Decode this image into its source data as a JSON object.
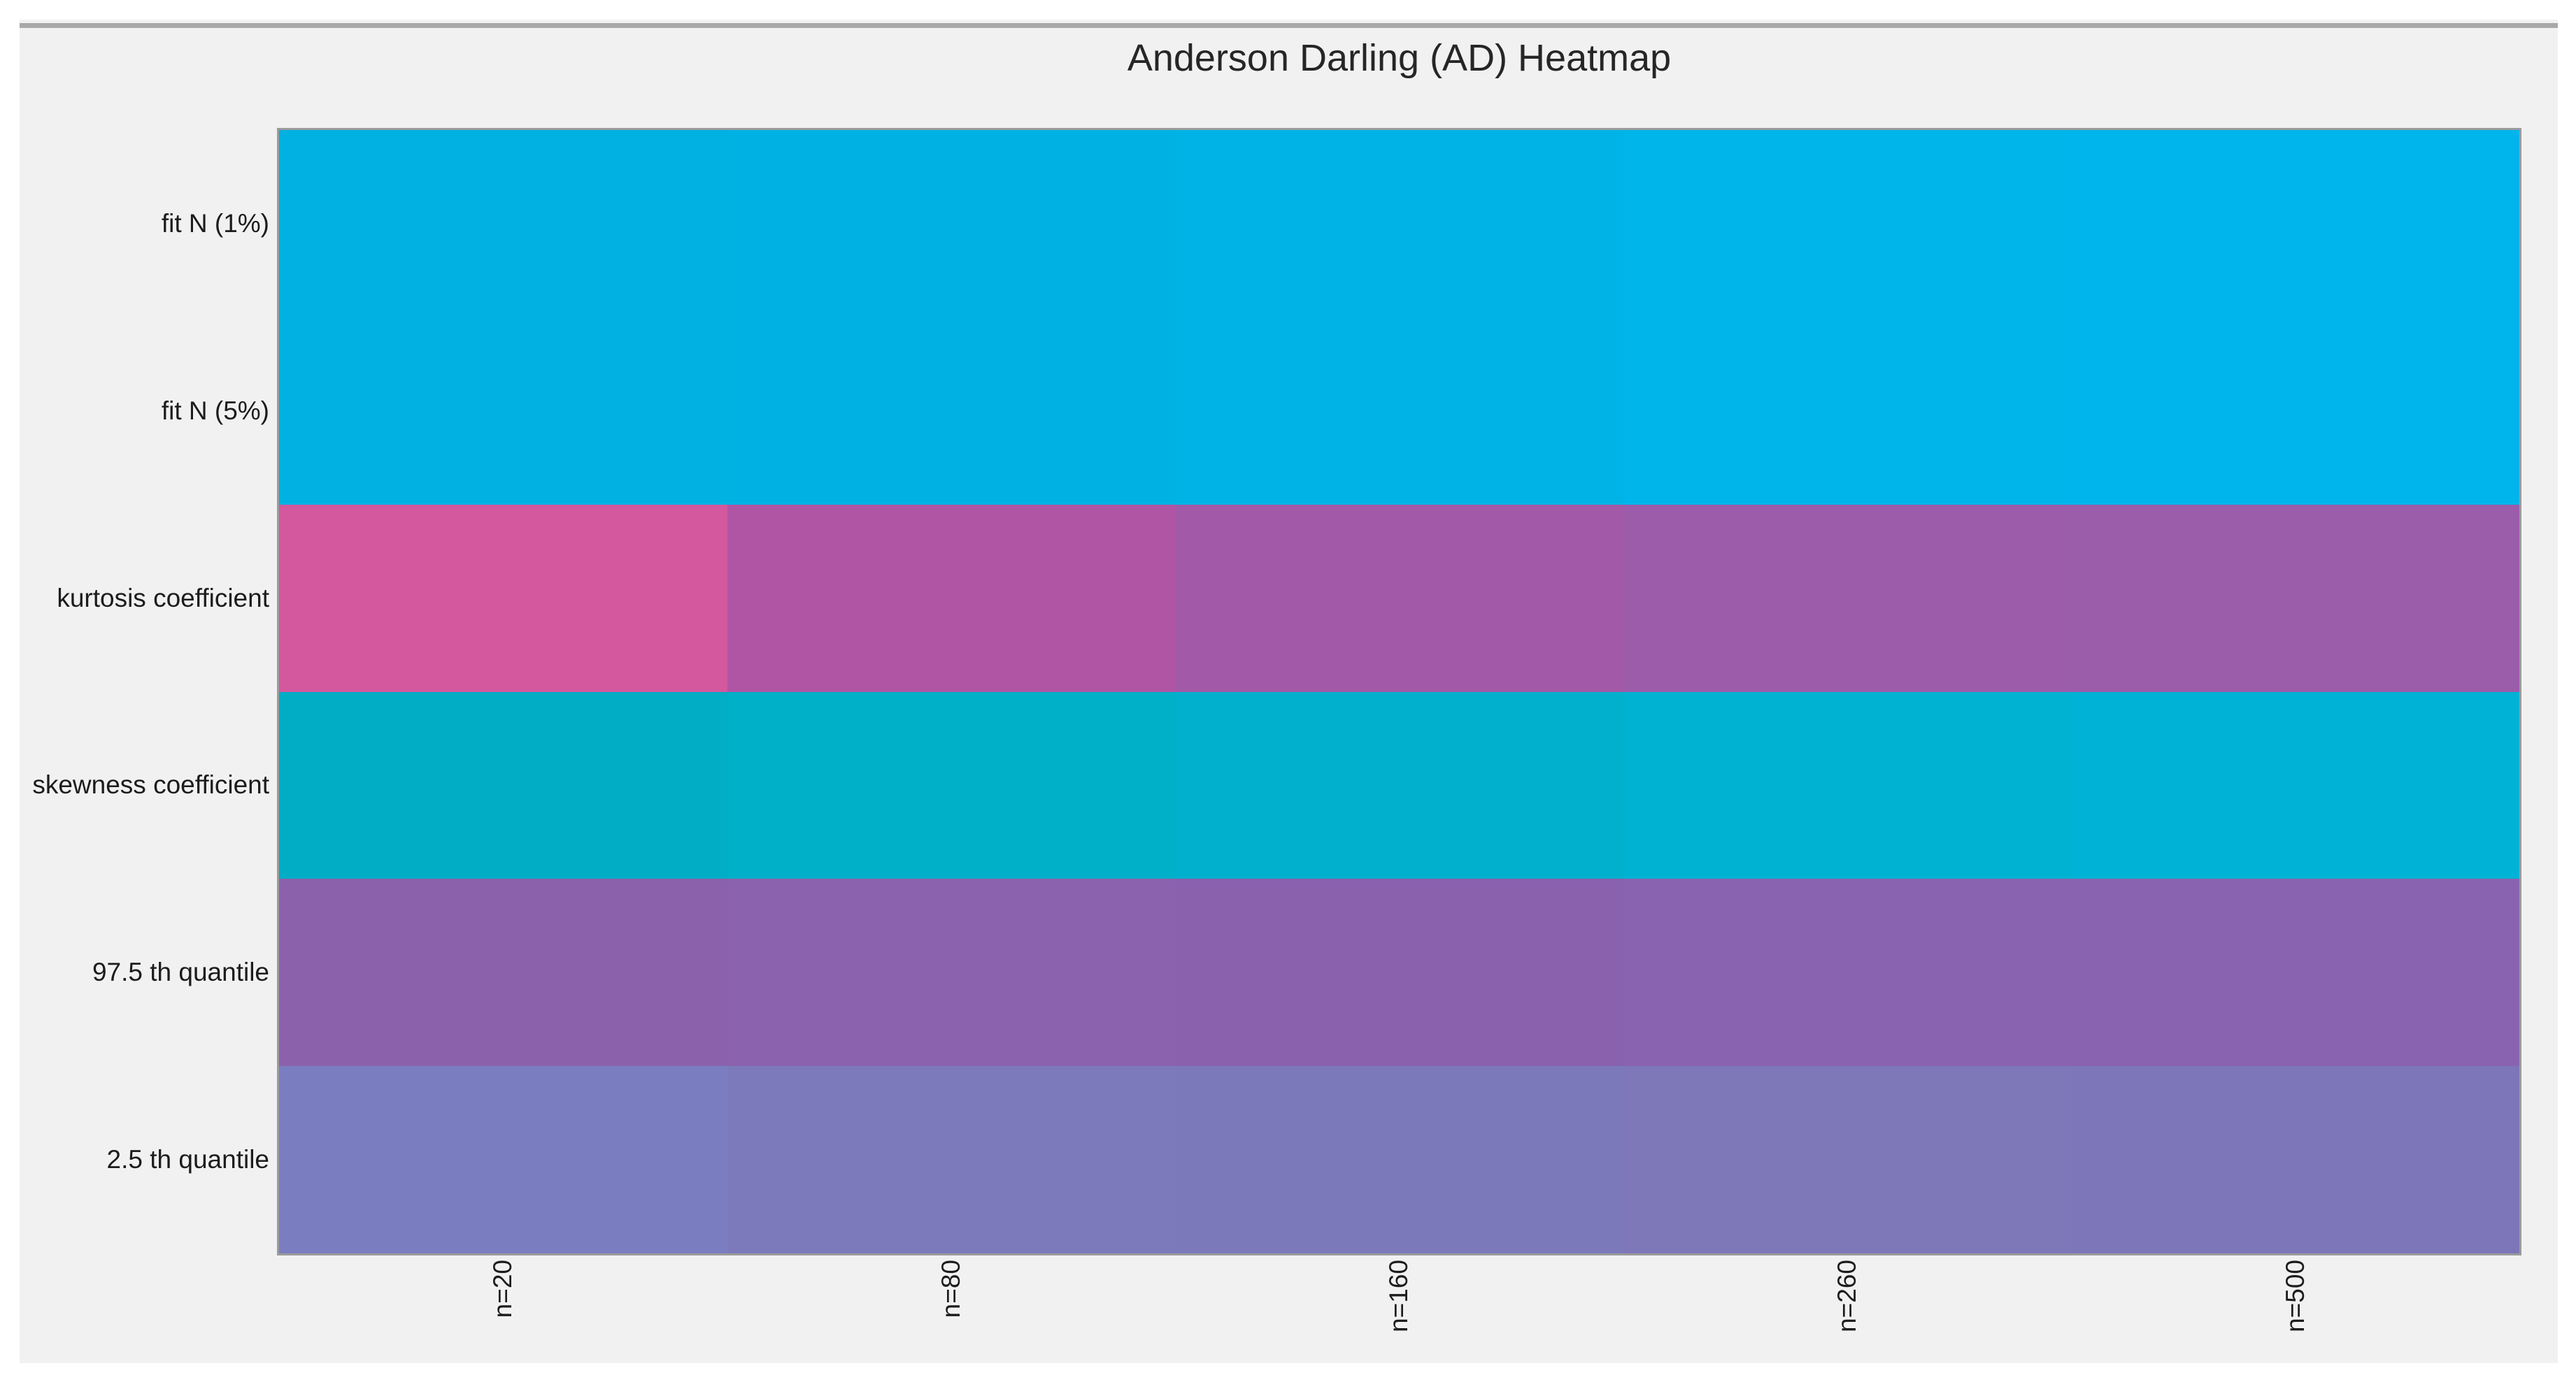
{
  "figure": {
    "background_color": "#f1f1f2",
    "top_rule_color": "#a8a8a8",
    "heatmap_border_color": "#9b9b9b",
    "text_color": "#1c1c1c"
  },
  "chart_data": {
    "type": "heatmap",
    "title": "Anderson Darling (AD) Heatmap",
    "rows": [
      "fit N (1%)",
      "fit N (5%)",
      "kurtosis coefficient",
      "skewness coefficient",
      "97.5 th quantile",
      "2.5 th quantile"
    ],
    "columns": [
      "n=20",
      "n=80",
      "n=160",
      "n=260",
      "n=500"
    ],
    "cell_colors": [
      [
        "#00b1e2",
        "#00b2e4",
        "#00b3e6",
        "#00b5ea",
        "#00b5eb"
      ],
      [
        "#00b1e2",
        "#00b2e4",
        "#00b3e6",
        "#00b5ea",
        "#00b5eb"
      ],
      [
        "#d4589d",
        "#b055a3",
        "#a259a7",
        "#9c5caa",
        "#9b5caa"
      ],
      [
        "#00adc4",
        "#00afc8",
        "#00b0cc",
        "#00b2d2",
        "#00b2d5"
      ],
      [
        "#8b61ac",
        "#8b62ae",
        "#8961ad",
        "#8a63b0",
        "#8963b0"
      ],
      [
        "#7a7ec0",
        "#7d7abc",
        "#7c79bb",
        "#7e77b8",
        "#7d76b8"
      ]
    ],
    "x_tick_rotation_deg": 90,
    "grid": false,
    "legend": "none",
    "colorbar": "none"
  }
}
